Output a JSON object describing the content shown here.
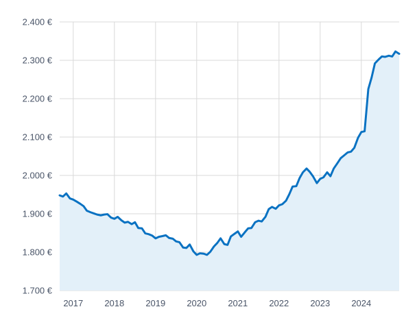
{
  "chart_data": {
    "type": "area",
    "title": "",
    "xlabel": "",
    "ylabel": "",
    "ylim": [
      1700,
      2400
    ],
    "xlim": [
      2016.67,
      2024.92
    ],
    "grid": true,
    "y_ticks": [
      1700,
      1800,
      1900,
      2000,
      2100,
      2200,
      2300,
      2400
    ],
    "y_tick_labels": [
      "1.700 €",
      "1.800 €",
      "1.900 €",
      "2.000 €",
      "2.100 €",
      "2.200 €",
      "2.300 €",
      "2.400 €"
    ],
    "x_ticks": [
      2017,
      2018,
      2019,
      2020,
      2021,
      2022,
      2023,
      2024
    ],
    "x_tick_labels": [
      "2017",
      "2018",
      "2019",
      "2020",
      "2021",
      "2022",
      "2023",
      "2024"
    ],
    "colors": {
      "line": "#0a72c2",
      "fill": "#e3f0f9",
      "grid": "#d9d9d9",
      "text": "#4a5568"
    },
    "series": [
      {
        "x": [
          2016.67,
          2016.75,
          2016.83,
          2016.92,
          2017.0,
          2017.08,
          2017.17,
          2017.25,
          2017.33,
          2017.42,
          2017.5,
          2017.58,
          2017.67,
          2017.75,
          2017.83,
          2017.92,
          2018.0,
          2018.08,
          2018.17,
          2018.25,
          2018.33,
          2018.42,
          2018.5,
          2018.58,
          2018.67,
          2018.75,
          2018.83,
          2018.92,
          2019.0,
          2019.08,
          2019.17,
          2019.25,
          2019.33,
          2019.42,
          2019.5,
          2019.58,
          2019.67,
          2019.75,
          2019.83,
          2019.92,
          2020.0,
          2020.08,
          2020.17,
          2020.25,
          2020.33,
          2020.42,
          2020.5,
          2020.58,
          2020.67,
          2020.75,
          2020.83,
          2020.92,
          2021.0,
          2021.08,
          2021.17,
          2021.25,
          2021.33,
          2021.42,
          2021.5,
          2021.58,
          2021.67,
          2021.75,
          2021.83,
          2021.92,
          2022.0,
          2022.08,
          2022.17,
          2022.25,
          2022.33,
          2022.42,
          2022.5,
          2022.58,
          2022.67,
          2022.75,
          2022.83,
          2022.92,
          2023.0,
          2023.08,
          2023.17,
          2023.25,
          2023.33,
          2023.42,
          2023.5,
          2023.58,
          2023.67,
          2023.75,
          2023.83,
          2023.92,
          2024.0,
          2024.08,
          2024.17,
          2024.25,
          2024.33,
          2024.42,
          2024.5,
          2024.58,
          2024.67,
          2024.75,
          2024.83,
          2024.92
        ],
        "y": [
          1948,
          1945,
          1953,
          1940,
          1937,
          1932,
          1926,
          1920,
          1908,
          1904,
          1901,
          1898,
          1896,
          1898,
          1899,
          1890,
          1887,
          1892,
          1883,
          1877,
          1879,
          1873,
          1878,
          1863,
          1862,
          1849,
          1847,
          1843,
          1836,
          1840,
          1842,
          1844,
          1837,
          1835,
          1828,
          1826,
          1812,
          1811,
          1820,
          1802,
          1793,
          1797,
          1796,
          1793,
          1801,
          1815,
          1824,
          1836,
          1821,
          1819,
          1841,
          1848,
          1854,
          1840,
          1852,
          1862,
          1863,
          1878,
          1882,
          1880,
          1892,
          1912,
          1918,
          1913,
          1922,
          1925,
          1934,
          1951,
          1971,
          1972,
          1993,
          2008,
          2018,
          2009,
          1997,
          1980,
          1991,
          1995,
          2008,
          1998,
          2018,
          2032,
          2045,
          2052,
          2060,
          2062,
          2072,
          2098,
          2113,
          2115,
          2225,
          2255,
          2292,
          2302,
          2310,
          2309,
          2312,
          2310,
          2323,
          2317
        ]
      }
    ]
  }
}
